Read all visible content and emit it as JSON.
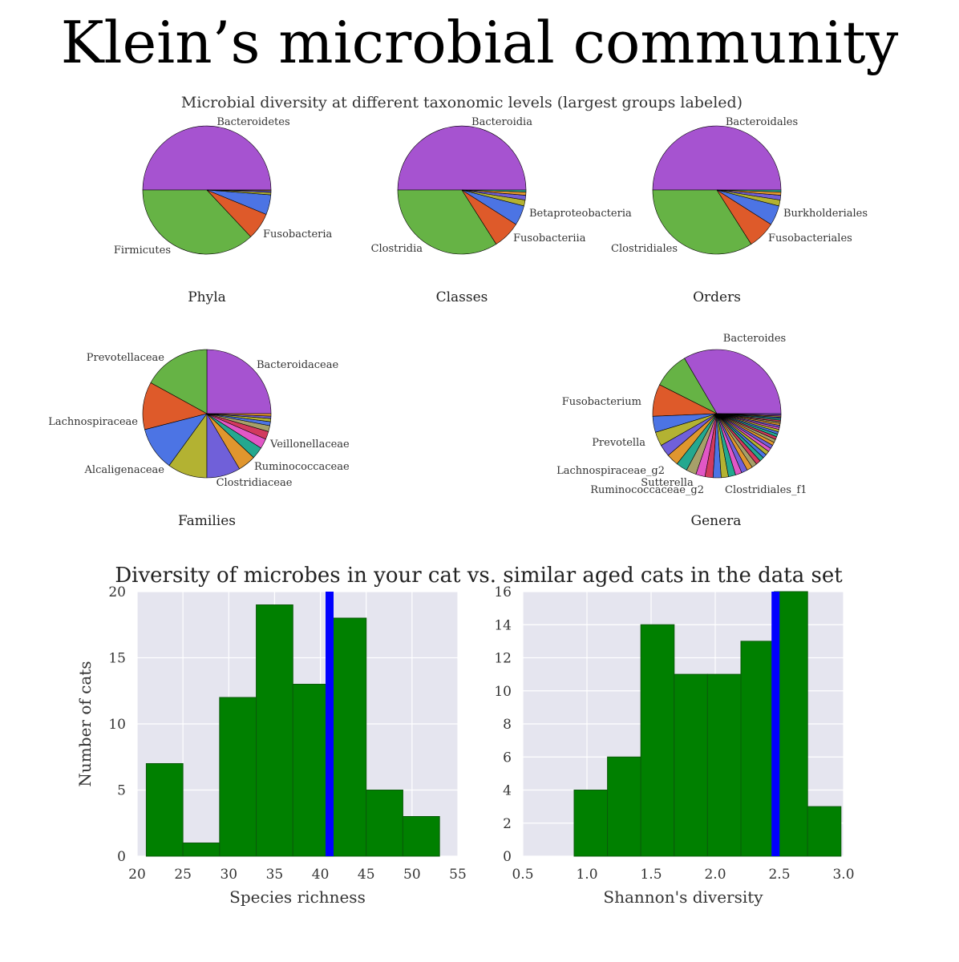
{
  "page_title": "Klein’s microbial community",
  "pies_title": "Microbial diversity at different taxonomic levels (largest groups labeled)",
  "hist_title": "Diversity of microbes in your cat vs. similar aged cats in the data set",
  "colors": {
    "purple": "#a653d0",
    "green": "#66b345",
    "orange": "#de5a2a",
    "blue": "#4c74e4",
    "olive": "#b3b232",
    "violet": "#7060d9",
    "amber": "#e0962e",
    "teal": "#24a88f",
    "pink": "#e157c6",
    "crimson": "#d23a5e",
    "khaki": "#a6a069",
    "hist_bar": "#008000",
    "marker": "#0000ff",
    "plot_bg": "#e5e5ef"
  },
  "chart_data": [
    {
      "type": "pie",
      "title": "Phyla",
      "slices": [
        {
          "label": "Bacteroidetes",
          "value": 50.0,
          "color": "purple"
        },
        {
          "label": "Firmicutes",
          "value": 37.0,
          "color": "green"
        },
        {
          "label": "Fusobacteria",
          "value": 6.8,
          "color": "orange"
        },
        {
          "label": "",
          "value": 5.0,
          "color": "blue"
        },
        {
          "label": "",
          "value": 0.6,
          "color": "olive"
        },
        {
          "label": "",
          "value": 0.4,
          "color": "violet"
        },
        {
          "label": "",
          "value": 0.2,
          "color": "amber"
        }
      ]
    },
    {
      "type": "pie",
      "title": "Classes",
      "slices": [
        {
          "label": "Bacteroidia",
          "value": 50.0,
          "color": "purple"
        },
        {
          "label": "Clostridia",
          "value": 34.0,
          "color": "green"
        },
        {
          "label": "Fusobacteriia",
          "value": 7.0,
          "color": "orange"
        },
        {
          "label": "Betaproteobacteria",
          "value": 5.0,
          "color": "blue"
        },
        {
          "label": "",
          "value": 1.5,
          "color": "olive"
        },
        {
          "label": "",
          "value": 1.2,
          "color": "violet"
        },
        {
          "label": "",
          "value": 0.8,
          "color": "amber"
        },
        {
          "label": "",
          "value": 0.5,
          "color": "teal"
        }
      ]
    },
    {
      "type": "pie",
      "title": "Orders",
      "slices": [
        {
          "label": "Bacteroidales",
          "value": 50.0,
          "color": "purple"
        },
        {
          "label": "Clostridiales",
          "value": 34.0,
          "color": "green"
        },
        {
          "label": "Fusobacteriales",
          "value": 7.0,
          "color": "orange"
        },
        {
          "label": "Burkholderiales",
          "value": 5.0,
          "color": "blue"
        },
        {
          "label": "",
          "value": 1.5,
          "color": "olive"
        },
        {
          "label": "",
          "value": 1.2,
          "color": "violet"
        },
        {
          "label": "",
          "value": 0.8,
          "color": "amber"
        },
        {
          "label": "",
          "value": 0.5,
          "color": "teal"
        }
      ]
    },
    {
      "type": "pie",
      "title": "Families",
      "slices": [
        {
          "label": "Bacteroidaceae",
          "value": 25.0,
          "color": "purple"
        },
        {
          "label": "Prevotellaceae",
          "value": 17.0,
          "color": "green"
        },
        {
          "label": "Lachnospiraceae",
          "value": 12.0,
          "color": "orange"
        },
        {
          "label": "Alcaligenaceae",
          "value": 11.0,
          "color": "blue"
        },
        {
          "label": "Clostridiaceae",
          "value": 10.0,
          "color": "olive"
        },
        {
          "label": "Ruminococcaceae",
          "value": 8.5,
          "color": "violet"
        },
        {
          "label": "Veillonellaceae",
          "value": 4.5,
          "color": "amber"
        },
        {
          "label": "",
          "value": 3.0,
          "color": "teal"
        },
        {
          "label": "",
          "value": 2.5,
          "color": "pink"
        },
        {
          "label": "",
          "value": 2.0,
          "color": "crimson"
        },
        {
          "label": "",
          "value": 1.5,
          "color": "khaki"
        },
        {
          "label": "",
          "value": 1.0,
          "color": "blue"
        },
        {
          "label": "",
          "value": 0.8,
          "color": "olive"
        },
        {
          "label": "",
          "value": 0.6,
          "color": "violet"
        },
        {
          "label": "",
          "value": 0.6,
          "color": "amber"
        }
      ]
    },
    {
      "type": "pie",
      "title": "Genera",
      "slices": [
        {
          "label": "Bacteroides",
          "value": 33.0,
          "color": "purple"
        },
        {
          "label": "Fusobacterium",
          "value": 9.0,
          "color": "green"
        },
        {
          "label": "Prevotella",
          "value": 8.0,
          "color": "orange"
        },
        {
          "label": "Lachnospiraceae_g2",
          "value": 4.0,
          "color": "blue"
        },
        {
          "label": "Sutterella",
          "value": 3.5,
          "color": "olive"
        },
        {
          "label": "Ruminococcaceae_g2",
          "value": 3.0,
          "color": "violet"
        },
        {
          "label": "",
          "value": 3.0,
          "color": "amber"
        },
        {
          "label": "",
          "value": 2.8,
          "color": "teal"
        },
        {
          "label": "",
          "value": 2.5,
          "color": "khaki"
        },
        {
          "label": "Clostridiales_f1",
          "value": 2.3,
          "color": "pink"
        },
        {
          "label": "",
          "value": 2.0,
          "color": "crimson"
        },
        {
          "label": "",
          "value": 2.0,
          "color": "blue"
        },
        {
          "label": "",
          "value": 1.8,
          "color": "olive"
        },
        {
          "label": "",
          "value": 1.8,
          "color": "teal"
        },
        {
          "label": "",
          "value": 1.6,
          "color": "pink"
        },
        {
          "label": "",
          "value": 1.5,
          "color": "violet"
        },
        {
          "label": "",
          "value": 1.4,
          "color": "amber"
        },
        {
          "label": "",
          "value": 1.3,
          "color": "khaki"
        },
        {
          "label": "",
          "value": 1.2,
          "color": "crimson"
        },
        {
          "label": "",
          "value": 1.1,
          "color": "teal"
        },
        {
          "label": "",
          "value": 1.0,
          "color": "blue"
        },
        {
          "label": "",
          "value": 1.0,
          "color": "olive"
        },
        {
          "label": "",
          "value": 0.9,
          "color": "pink"
        },
        {
          "label": "",
          "value": 0.9,
          "color": "violet"
        },
        {
          "label": "",
          "value": 0.8,
          "color": "amber"
        },
        {
          "label": "",
          "value": 0.8,
          "color": "khaki"
        },
        {
          "label": "",
          "value": 0.7,
          "color": "crimson"
        },
        {
          "label": "",
          "value": 0.7,
          "color": "teal"
        },
        {
          "label": "",
          "value": 0.6,
          "color": "blue"
        },
        {
          "label": "",
          "value": 0.6,
          "color": "olive"
        },
        {
          "label": "",
          "value": 0.5,
          "color": "pink"
        },
        {
          "label": "",
          "value": 0.5,
          "color": "violet"
        },
        {
          "label": "",
          "value": 0.5,
          "color": "amber"
        },
        {
          "label": "",
          "value": 0.4,
          "color": "khaki"
        },
        {
          "label": "",
          "value": 0.4,
          "color": "crimson"
        },
        {
          "label": "",
          "value": 0.4,
          "color": "teal"
        },
        {
          "label": "",
          "value": 0.3,
          "color": "blue"
        },
        {
          "label": "",
          "value": 0.3,
          "color": "olive"
        },
        {
          "label": "",
          "value": 0.3,
          "color": "pink"
        },
        {
          "label": "",
          "value": 0.3,
          "color": "violet"
        }
      ]
    },
    {
      "type": "histogram",
      "xlabel": "Species richness",
      "ylabel": "Number of cats",
      "xlim": [
        20,
        55
      ],
      "ylim": [
        0,
        20
      ],
      "xticks": [
        20,
        25,
        30,
        35,
        40,
        45,
        50,
        55
      ],
      "yticks": [
        0,
        5,
        10,
        15,
        20
      ],
      "bins": [
        {
          "x0": 21,
          "x1": 25,
          "count": 7
        },
        {
          "x0": 25,
          "x1": 29,
          "count": 1
        },
        {
          "x0": 29,
          "x1": 33,
          "count": 12
        },
        {
          "x0": 33,
          "x1": 37,
          "count": 19
        },
        {
          "x0": 37,
          "x1": 41,
          "count": 13
        },
        {
          "x0": 41,
          "x1": 45,
          "count": 18
        },
        {
          "x0": 45,
          "x1": 49,
          "count": 5
        },
        {
          "x0": 49,
          "x1": 53,
          "count": 3
        }
      ],
      "marker_value": 41
    },
    {
      "type": "histogram",
      "xlabel": "Shannon's diversity",
      "ylabel": "",
      "xlim": [
        0.5,
        3.0
      ],
      "ylim": [
        0,
        16
      ],
      "xticks": [
        0.5,
        1.0,
        1.5,
        2.0,
        2.5,
        3.0
      ],
      "xtick_labels": [
        "0.5",
        "1.0",
        "1.5",
        "2.0",
        "2.5",
        "3.0"
      ],
      "yticks": [
        0,
        2,
        4,
        6,
        8,
        10,
        12,
        14,
        16
      ],
      "bins": [
        {
          "x0": 0.9,
          "x1": 1.16,
          "count": 4
        },
        {
          "x0": 1.16,
          "x1": 1.42,
          "count": 6
        },
        {
          "x0": 1.42,
          "x1": 1.68,
          "count": 14
        },
        {
          "x0": 1.68,
          "x1": 1.94,
          "count": 11
        },
        {
          "x0": 1.94,
          "x1": 2.2,
          "count": 11
        },
        {
          "x0": 2.2,
          "x1": 2.46,
          "count": 13
        },
        {
          "x0": 2.46,
          "x1": 2.72,
          "count": 16
        },
        {
          "x0": 2.72,
          "x1": 2.98,
          "count": 3
        }
      ],
      "marker_value": 2.47
    }
  ]
}
